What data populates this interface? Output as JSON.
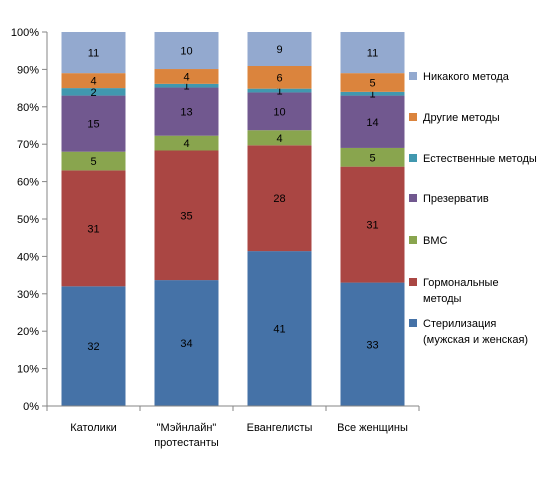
{
  "chart_data": {
    "type": "bar",
    "stacked": "percent",
    "categories": [
      "Католики",
      "\"Мэйнлайн\"\nпротестанты",
      "Евангелисты",
      "Все женщины"
    ],
    "series": [
      {
        "name": "Стерилизация (мужская и женская)",
        "name_lines": [
          "Стерилизация",
          "(мужская и женская)"
        ],
        "color": "#4572A7",
        "values": [
          32,
          34,
          41,
          33
        ]
      },
      {
        "name": "Гормональные методы",
        "name_lines": [
          "Гормональные",
          "методы"
        ],
        "color": "#AA4643",
        "values": [
          31,
          35,
          28,
          31
        ]
      },
      {
        "name": "ВМС",
        "name_lines": [
          "ВМС"
        ],
        "color": "#89A54E",
        "values": [
          5,
          4,
          4,
          5
        ]
      },
      {
        "name": "Презерватив",
        "name_lines": [
          "Презерватив"
        ],
        "color": "#71588F",
        "values": [
          15,
          13,
          10,
          14
        ]
      },
      {
        "name": "Естественные методы",
        "name_lines": [
          "Естественные методы"
        ],
        "color": "#4198AF",
        "values": [
          2,
          1,
          1,
          1
        ]
      },
      {
        "name": "Другие методы",
        "name_lines": [
          "Другие методы"
        ],
        "color": "#DB843D",
        "values": [
          4,
          4,
          6,
          5
        ]
      },
      {
        "name": "Никакого метода",
        "name_lines": [
          "Никакого метода"
        ],
        "color": "#93A9CF",
        "values": [
          11,
          10,
          9,
          11
        ]
      }
    ],
    "yticks": [
      "0%",
      "10%",
      "20%",
      "30%",
      "40%",
      "50%",
      "60%",
      "70%",
      "80%",
      "90%",
      "100%"
    ],
    "ylim": [
      0,
      100
    ],
    "legend_position": "right",
    "grid": false
  }
}
